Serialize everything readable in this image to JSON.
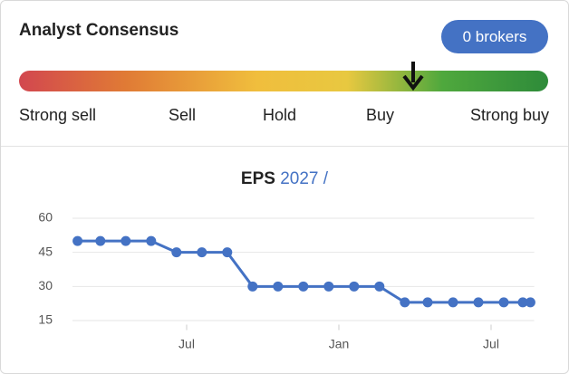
{
  "header": {
    "title": "Analyst Consensus",
    "button": "0 brokers"
  },
  "gauge": {
    "labels": [
      "Strong sell",
      "Sell",
      "Hold",
      "Buy",
      "Strong buy"
    ]
  },
  "chart_data": {
    "type": "line",
    "title": "EPS",
    "subtitle": "2027 /",
    "x": [
      1.7,
      2.6,
      3.6,
      4.6,
      5.6,
      6.6,
      7.6,
      8.6,
      9.6,
      10.6,
      11.6,
      12.6,
      13.6,
      14.6,
      15.5,
      16.5,
      17.5,
      18.5,
      19.25,
      19.55
    ],
    "series": [
      {
        "color": "#4472c4",
        "values": [
          50,
          50,
          50,
          50,
          45,
          45,
          45,
          30,
          30,
          30,
          30,
          30,
          30,
          23,
          23,
          23,
          23,
          23,
          23,
          23
        ]
      }
    ],
    "xlim": [
      1.5,
      19.7
    ],
    "xticks": [
      {
        "value": 6,
        "label": "Jul"
      },
      {
        "value": 12,
        "label": "Jan"
      },
      {
        "value": 18,
        "label": "Jul"
      }
    ],
    "ylim": [
      12,
      62
    ],
    "yticks": [
      15,
      30,
      45,
      60
    ],
    "grid": true
  }
}
